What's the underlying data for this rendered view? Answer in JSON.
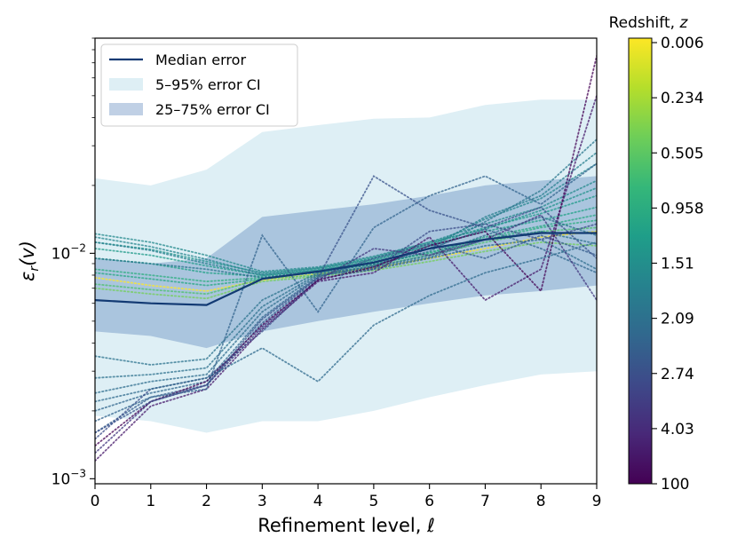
{
  "chart_data": {
    "type": "line",
    "xlabel": "Refinement level, ℓ",
    "ylabel": "ε_r(v)",
    "yscale": "log",
    "xlim": [
      0,
      9
    ],
    "ylim": [
      0.00095,
      0.09
    ],
    "x_ticks": [
      0,
      1,
      2,
      3,
      4,
      5,
      6,
      7,
      8,
      9
    ],
    "y_ticks": [
      {
        "value": 0.001,
        "base": "10",
        "exp": "−3"
      },
      {
        "value": 0.01,
        "base": "10",
        "exp": "−2"
      }
    ],
    "x": [
      0,
      1,
      2,
      3,
      4,
      5,
      6,
      7,
      8,
      9
    ],
    "median": {
      "name": "Median error",
      "color": "#123a73",
      "values": [
        0.0062,
        0.006,
        0.0059,
        0.0077,
        0.0083,
        0.0091,
        0.0105,
        0.0115,
        0.0123,
        0.0123
      ]
    },
    "band_5_95": {
      "name": "5–95% error CI",
      "color": "#add8e6",
      "lower": [
        0.0019,
        0.0018,
        0.0016,
        0.0018,
        0.0018,
        0.002,
        0.0023,
        0.0026,
        0.0029,
        0.003
      ],
      "upper": [
        0.0215,
        0.02,
        0.0235,
        0.0345,
        0.037,
        0.0395,
        0.04,
        0.0455,
        0.048,
        0.048
      ]
    },
    "band_25_75": {
      "name": "25–75% error CI",
      "color": "#4a77b4",
      "lower": [
        0.0045,
        0.0043,
        0.0038,
        0.0045,
        0.005,
        0.0055,
        0.006,
        0.0065,
        0.0068,
        0.0072
      ],
      "upper": [
        0.0095,
        0.009,
        0.0095,
        0.0145,
        0.0155,
        0.0165,
        0.018,
        0.02,
        0.021,
        0.022
      ]
    },
    "redshift_curves_note": "dotted curves, one per redshift slice, colored by viridis colormap",
    "redshift_curves": [
      {
        "z": 0.006,
        "values": [
          0.0078,
          0.0072,
          0.0068,
          0.0076,
          0.0081,
          0.0086,
          0.0095,
          0.0105,
          0.0118,
          0.0125
        ]
      },
      {
        "z": 0.05,
        "values": [
          0.007,
          0.0066,
          0.0063,
          0.0075,
          0.0079,
          0.0084,
          0.0092,
          0.0102,
          0.0112,
          0.0108
        ]
      },
      {
        "z": 0.1,
        "values": [
          0.0073,
          0.0069,
          0.0066,
          0.0077,
          0.008,
          0.0088,
          0.0098,
          0.0112,
          0.0125,
          0.013
        ]
      },
      {
        "z": 0.234,
        "values": [
          0.0085,
          0.008,
          0.0075,
          0.0078,
          0.0082,
          0.009,
          0.01,
          0.0115,
          0.013,
          0.014
        ]
      },
      {
        "z": 0.3,
        "values": [
          0.0082,
          0.0077,
          0.0072,
          0.0077,
          0.0083,
          0.0089,
          0.0101,
          0.0118,
          0.0132,
          0.0148
        ]
      },
      {
        "z": 0.4,
        "values": [
          0.0095,
          0.009,
          0.0082,
          0.0079,
          0.0084,
          0.0093,
          0.0108,
          0.0125,
          0.014,
          0.016
        ]
      },
      {
        "z": 0.505,
        "values": [
          0.0105,
          0.0098,
          0.0088,
          0.008,
          0.0085,
          0.0095,
          0.011,
          0.013,
          0.015,
          0.018
        ]
      },
      {
        "z": 0.7,
        "values": [
          0.0112,
          0.0104,
          0.0092,
          0.0082,
          0.0086,
          0.0096,
          0.0112,
          0.0128,
          0.0155,
          0.0195
        ]
      },
      {
        "z": 0.958,
        "values": [
          0.0122,
          0.0112,
          0.0098,
          0.0083,
          0.0087,
          0.0097,
          0.0112,
          0.0135,
          0.016,
          0.021
        ]
      },
      {
        "z": 1.2,
        "values": [
          0.0118,
          0.0107,
          0.0094,
          0.0081,
          0.0086,
          0.0094,
          0.0108,
          0.0142,
          0.0175,
          0.025
        ]
      },
      {
        "z": 1.51,
        "values": [
          0.0112,
          0.0103,
          0.009,
          0.008,
          0.0084,
          0.0092,
          0.0105,
          0.0145,
          0.018,
          0.028
        ]
      },
      {
        "z": 2.09,
        "values": [
          0.0095,
          0.009,
          0.0085,
          0.0078,
          0.0083,
          0.0089,
          0.0102,
          0.0138,
          0.019,
          0.032
        ]
      },
      {
        "z": 2.5,
        "values": [
          0.0035,
          0.0032,
          0.0034,
          0.0062,
          0.0082,
          0.0087,
          0.0098,
          0.012,
          0.0145,
          0.012
        ]
      },
      {
        "z": 2.74,
        "values": [
          0.0028,
          0.0029,
          0.0031,
          0.0058,
          0.0081,
          0.0086,
          0.0096,
          0.0115,
          0.0125,
          0.011
        ]
      },
      {
        "z": 3.2,
        "values": [
          0.0024,
          0.0027,
          0.0029,
          0.0055,
          0.008,
          0.0085,
          0.0095,
          0.0108,
          0.0115,
          0.0085
        ]
      },
      {
        "z": 4.03,
        "values": [
          0.002,
          0.0024,
          0.0027,
          0.0052,
          0.0079,
          0.0088,
          0.0105,
          0.0128,
          0.0105,
          0.0082
        ]
      },
      {
        "z": 6.0,
        "values": [
          0.0016,
          0.0023,
          0.0026,
          0.0049,
          0.0078,
          0.0095,
          0.011,
          0.0095,
          0.012,
          0.0098
        ]
      },
      {
        "z": 10.0,
        "values": [
          0.0015,
          0.0025,
          0.0028,
          0.0045,
          0.0077,
          0.0085,
          0.0125,
          0.0135,
          0.0115,
          0.0135
        ]
      },
      {
        "z": 20.0,
        "values": [
          0.0013,
          0.0022,
          0.0026,
          0.0047,
          0.0076,
          0.0105,
          0.0098,
          0.0115,
          0.0148,
          0.0062
        ]
      },
      {
        "z": 50.0,
        "values": [
          0.0012,
          0.0021,
          0.0025,
          0.0046,
          0.0075,
          0.0082,
          0.0118,
          0.0062,
          0.0085,
          0.05
        ]
      },
      {
        "z": 100,
        "values": [
          0.0014,
          0.0022,
          0.0027,
          0.0048,
          0.0076,
          0.0087,
          0.0108,
          0.0125,
          0.0068,
          0.075
        ]
      },
      {
        "z": 3.5,
        "values": [
          0.0022,
          0.0025,
          0.0028,
          0.0038,
          0.0027,
          0.0048,
          0.0065,
          0.0082,
          0.0095,
          0.0112
        ]
      },
      {
        "z": 4.5,
        "values": [
          0.0018,
          0.0023,
          0.0025,
          0.012,
          0.0055,
          0.013,
          0.018,
          0.022,
          0.0165,
          0.025
        ]
      },
      {
        "z": 8.0,
        "values": [
          0.0016,
          0.0022,
          0.0026,
          0.0051,
          0.0078,
          0.022,
          0.0155,
          0.013,
          0.016,
          0.0095
        ]
      }
    ],
    "legend": {
      "placement": "top-left",
      "entries": [
        "Median error",
        "5–95% error CI",
        "25–75% error CI"
      ]
    },
    "colorbar": {
      "title": "Redshift, z",
      "tick_labels": [
        "0.006",
        "0.234",
        "0.505",
        "0.958",
        "1.51",
        "2.09",
        "2.74",
        "4.03",
        "100"
      ],
      "colormap": "viridis",
      "colors": [
        "#440154",
        "#482878",
        "#3e4989",
        "#31688e",
        "#26828e",
        "#1f9e89",
        "#35b779",
        "#6ece58",
        "#b5de2b",
        "#fde725"
      ]
    }
  }
}
